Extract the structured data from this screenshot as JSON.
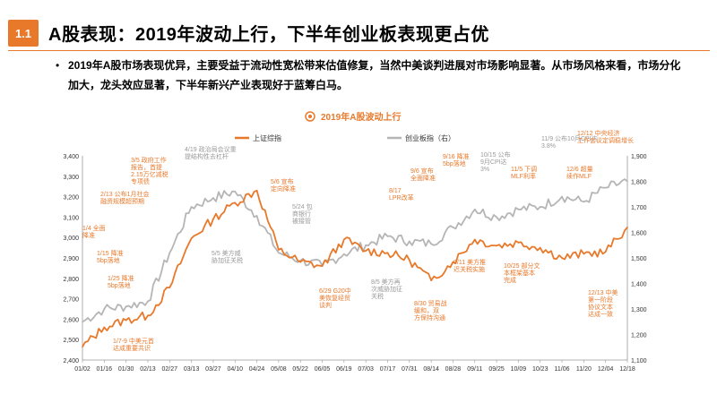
{
  "header": {
    "badge": "1.1",
    "title": "A股表现：2019年波动上行，下半年创业板表现更占优"
  },
  "bullet": {
    "text": "2019年A股市场表现优异，主要受益于流动性宽松带来估值修复，当然中美谈判进展对市场影响显著。从市场风格来看，市场分化加大，龙头效应显著，下半年新兴产业表现好于蓝筹白马。"
  },
  "chart_data": {
    "type": "line",
    "title": "2019年A股波动上行",
    "legend_position": "top",
    "colors": {
      "shanghai": "#E8792B",
      "chinext": "#B5B5B5"
    },
    "categories": [
      "01/02",
      "01/16",
      "01/30",
      "02/13",
      "02/27",
      "03/13",
      "03/27",
      "04/10",
      "04/24",
      "05/08",
      "05/22",
      "06/05",
      "06/19",
      "07/03",
      "07/17",
      "07/31",
      "08/14",
      "08/28",
      "09/11",
      "09/25",
      "10/09",
      "10/23",
      "11/06",
      "11/20",
      "12/04",
      "12/18"
    ],
    "y_left": {
      "ylim": [
        2400,
        3400
      ],
      "ticks": [
        "2,400",
        "2,500",
        "2,600",
        "2,700",
        "2,800",
        "2,900",
        "3,000",
        "3,100",
        "3,200",
        "3,300",
        "3,400"
      ]
    },
    "y_right": {
      "ylim": [
        1100,
        1900
      ],
      "ticks": [
        "1,100",
        "1,200",
        "1,300",
        "1,400",
        "1,500",
        "1,600",
        "1,700",
        "1,800",
        "1,900"
      ]
    },
    "series": [
      {
        "name": "上证综指",
        "axis": "left",
        "values": [
          2465,
          2560,
          2595,
          2618,
          2755,
          2996,
          3090,
          3170,
          3230,
          2940,
          2880,
          2860,
          2990,
          2935,
          2925,
          2890,
          2790,
          2880,
          2990,
          2960,
          2975,
          2950,
          2900,
          2920,
          2930,
          3050
        ]
      },
      {
        "name": "创业板指（右）",
        "axis": "right",
        "values": [
          1250,
          1300,
          1310,
          1330,
          1520,
          1700,
          1735,
          1760,
          1665,
          1520,
          1490,
          1470,
          1515,
          1550,
          1585,
          1565,
          1555,
          1620,
          1690,
          1660,
          1690,
          1700,
          1740,
          1720,
          1775,
          1800
        ]
      }
    ],
    "annotations": [
      {
        "color": "orange",
        "text": "1/4 全面\n降准"
      },
      {
        "color": "orange",
        "text": "1/15 降准\n5bp落地"
      },
      {
        "color": "orange",
        "text": "1/25 降准\n5bp落地"
      },
      {
        "color": "orange",
        "text": "1/7-9 中美元首\n达成重要共识"
      },
      {
        "color": "orange",
        "text": "2/13 公布1月社会\n融资规模超预期"
      },
      {
        "color": "orange",
        "text": "3/5 政府工作\n报告，首提\n2.15万亿减税\n专项债"
      },
      {
        "color": "gray",
        "text": "4/19 政治局会议重\n提结构性去杠杆"
      },
      {
        "color": "gray",
        "text": "5/5 美方威\n胁加征关税"
      },
      {
        "color": "orange",
        "text": "5/6 宣布\n定向降准"
      },
      {
        "color": "gray",
        "text": "5/24 包\n商银行\n被接管"
      },
      {
        "color": "orange",
        "text": "6/29 G20中\n美恢复经贸\n谈判"
      },
      {
        "color": "gray",
        "text": "8/5 美方再\n次威胁加征\n关税"
      },
      {
        "color": "orange",
        "text": "8/17\nLPR改革"
      },
      {
        "color": "orange",
        "text": "9/6 宣布\n全面降准"
      },
      {
        "color": "orange",
        "text": "8/30 贸易战\n缓和，双\n方保持沟通"
      },
      {
        "color": "orange",
        "text": "9/16 降准\n5bp落地"
      },
      {
        "color": "gray",
        "text": "10/15 公布\n9月CPI达\n3%"
      },
      {
        "color": "orange",
        "text": "9/11 美方推\n迟关税实施"
      },
      {
        "color": "orange",
        "text": "10/25 部分文\n本框架基本\n完成"
      },
      {
        "color": "orange",
        "text": "11/5 下调\nMLF利率"
      },
      {
        "color": "gray",
        "text": "11/9 公布10月CPI达\n3.8%"
      },
      {
        "color": "orange",
        "text": "12/6 超量\n续作MLF"
      },
      {
        "color": "orange",
        "text": "12/12 中央经济\n工作会议定调稳增长"
      },
      {
        "color": "orange",
        "text": "12/13 中美\n第一阶段\n协议文本\n达成一致"
      }
    ]
  }
}
